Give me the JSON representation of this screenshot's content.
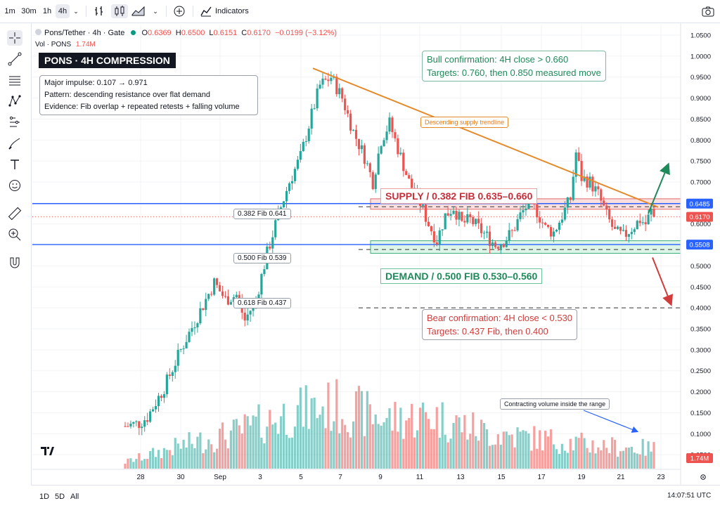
{
  "toolbar": {
    "timeframes": [
      "1m",
      "30m",
      "1h",
      "4h"
    ],
    "active_timeframe": "4h",
    "indicators_label": "Indicators"
  },
  "header": {
    "symbol": "Pons/Tether · 4h · Gate",
    "open_label": "O",
    "open": "0.6369",
    "high_label": "H",
    "high": "0.6500",
    "low_label": "L",
    "low": "0.6151",
    "close_label": "C",
    "close": "0.6170",
    "change": "−0.0199 (−3.12%)",
    "vol_label": "Vol · PONS",
    "vol_value": "1.74M"
  },
  "annotations": {
    "title": "PONS · 4H COMPRESSION",
    "info_lines": [
      "Major impulse: 0.107 → 0.971",
      "Pattern: descending resistance over flat demand",
      "Evidence: Fib overlap + repeated retests + falling volume"
    ],
    "bull_lines": [
      "Bull confirmation: 4H close > 0.660",
      "Targets: 0.760, then 0.850 measured move"
    ],
    "bear_lines": [
      "Bear confirmation: 4H close < 0.530",
      "Targets: 0.437 Fib, then 0.400"
    ],
    "supply_label": "SUPPLY / 0.382 FIB  0.635–0.660",
    "demand_label": "DEMAND / 0.500 FIB  0.530–0.560",
    "trendline_label": "Descending supply trendline",
    "volume_note": "Contracting volume inside the range",
    "fib_382": "0.382 Fib  0.641",
    "fib_500": "0.500 Fib  0.539",
    "fib_618": "0.618 Fib  0.437"
  },
  "bottom": {
    "ranges": [
      "1D",
      "5D",
      "All"
    ],
    "clock": "14:07:51 UTC"
  },
  "colors": {
    "up": "#26a69a",
    "down": "#ef5350",
    "trendline": "#e58a2a",
    "level_line": "#2962ff",
    "supply_fill": "#f8d4d4",
    "demand_fill": "#d4f1e4"
  },
  "chart_data": {
    "type": "candlestick",
    "y_scale": "linear",
    "ylim": [
      0.0,
      1.05
    ],
    "y_ticks": [
      "1.0500",
      "1.0000",
      "0.9500",
      "0.9000",
      "0.8500",
      "0.8000",
      "0.7500",
      "0.7000",
      "0.6500",
      "0.6000",
      "0.5500",
      "0.5000",
      "0.4500",
      "0.4000",
      "0.3500",
      "0.3000",
      "0.2500",
      "0.2000",
      "0.1500",
      "0.1000",
      "0.0500"
    ],
    "x_tick_labels": [
      "28",
      "30",
      "Sep",
      "3",
      "5",
      "7",
      "9",
      "11",
      "13",
      "15",
      "17",
      "19",
      "21",
      "23"
    ],
    "price_labels": [
      {
        "value": 0.6485,
        "text": "0.6485",
        "color": "#2962ff"
      },
      {
        "value": 0.617,
        "text": "0.6170",
        "color": "#ef5350"
      },
      {
        "value": 0.5508,
        "text": "0.5508",
        "color": "#2962ff"
      }
    ],
    "volume_label": {
      "text": "1.74M",
      "color": "#ef5350"
    },
    "levels": {
      "resistance_line": 0.6485,
      "support_line": 0.5508,
      "supply_zone": [
        0.635,
        0.66
      ],
      "demand_zone": [
        0.53,
        0.56
      ],
      "fib_382": 0.641,
      "fib_500": 0.539,
      "fib_618": 0.437,
      "bear_target": 0.4,
      "last_price": 0.617
    },
    "impulse": {
      "low": 0.107,
      "high": 0.971
    },
    "trendline": {
      "start": 0.971,
      "end": 0.64
    },
    "candles": {
      "waypoints": [
        [
          0,
          0.118
        ],
        [
          5,
          0.125
        ],
        [
          8,
          0.14
        ],
        [
          14,
          0.21
        ],
        [
          20,
          0.3
        ],
        [
          26,
          0.38
        ],
        [
          32,
          0.46
        ],
        [
          36,
          0.42
        ],
        [
          40,
          0.43
        ],
        [
          43,
          0.37
        ],
        [
          47,
          0.42
        ],
        [
          51,
          0.53
        ],
        [
          55,
          0.62
        ],
        [
          59,
          0.7
        ],
        [
          63,
          0.76
        ],
        [
          67,
          0.86
        ],
        [
          70,
          0.93
        ],
        [
          74,
          0.95
        ],
        [
          78,
          0.9
        ],
        [
          82,
          0.82
        ],
        [
          86,
          0.76
        ],
        [
          89,
          0.7
        ],
        [
          92,
          0.8
        ],
        [
          95,
          0.84
        ],
        [
          98,
          0.78
        ],
        [
          102,
          0.7
        ],
        [
          106,
          0.65
        ],
        [
          109,
          0.6
        ],
        [
          112,
          0.56
        ],
        [
          115,
          0.62
        ],
        [
          118,
          0.64
        ],
        [
          121,
          0.6
        ],
        [
          124,
          0.61
        ],
        [
          127,
          0.59
        ],
        [
          130,
          0.57
        ],
        [
          133,
          0.55
        ],
        [
          136,
          0.56
        ],
        [
          139,
          0.58
        ],
        [
          142,
          0.62
        ],
        [
          145,
          0.65
        ],
        [
          148,
          0.63
        ],
        [
          151,
          0.59
        ],
        [
          154,
          0.58
        ],
        [
          157,
          0.62
        ],
        [
          160,
          0.66
        ],
        [
          162,
          0.77
        ],
        [
          164,
          0.71
        ],
        [
          167,
          0.7
        ],
        [
          170,
          0.67
        ],
        [
          173,
          0.62
        ],
        [
          176,
          0.58
        ],
        [
          179,
          0.57
        ],
        [
          182,
          0.59
        ],
        [
          185,
          0.61
        ],
        [
          187,
          0.6
        ],
        [
          189,
          0.63
        ],
        [
          190,
          0.617
        ]
      ]
    },
    "volume": {
      "waypoints": [
        [
          0,
          0.1
        ],
        [
          20,
          0.35
        ],
        [
          40,
          0.55
        ],
        [
          60,
          0.85
        ],
        [
          75,
          0.95
        ],
        [
          95,
          0.75
        ],
        [
          110,
          0.8
        ],
        [
          130,
          0.55
        ],
        [
          150,
          0.45
        ],
        [
          170,
          0.35
        ],
        [
          190,
          0.3
        ]
      ]
    }
  }
}
